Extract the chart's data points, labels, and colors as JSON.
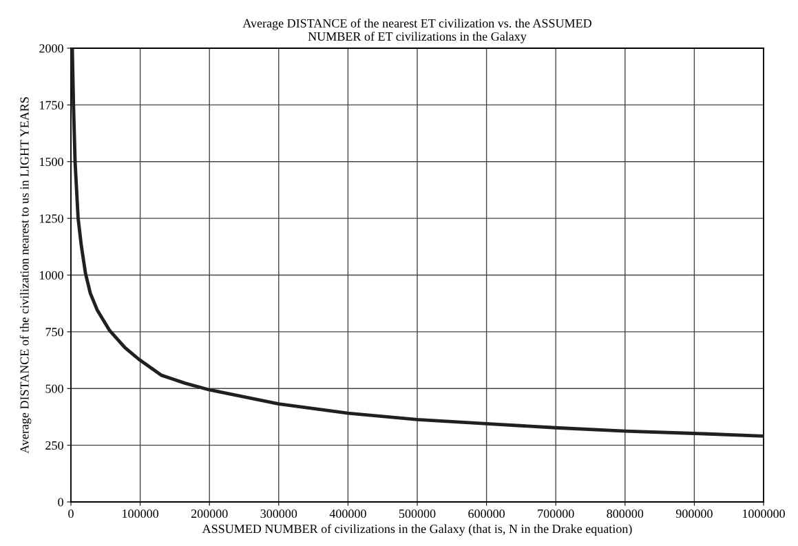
{
  "chart_data": {
    "type": "line",
    "title": "Average DISTANCE of the nearest ET civilization vs. the ASSUMED\nNUMBER of ET civilizations in the Galaxy",
    "xlabel": "ASSUMED NUMBER of civilizations in the Galaxy (that is, N in the Drake equation)",
    "ylabel": "Average DISTANCE of the civilization nearest to us in LIGHT YEARS",
    "x": [
      2000,
      3700,
      6000,
      10400,
      15000,
      21000,
      28000,
      37800,
      56000,
      78000,
      98000,
      131000,
      165000,
      200000,
      300000,
      400000,
      500000,
      600000,
      700000,
      800000,
      900000,
      1000000
    ],
    "series": [
      {
        "color": "#231f20",
        "values": [
          2000,
          1750,
          1500,
          1250,
          1130,
          1008,
          920,
          847,
          755,
          680,
          629,
          558,
          523,
          494,
          432,
          391,
          363,
          345,
          327,
          312,
          302,
          290
        ]
      }
    ],
    "xlim": [
      0,
      1000000
    ],
    "ylim": [
      0,
      2000
    ],
    "xticks": [
      0,
      100000,
      200000,
      300000,
      400000,
      500000,
      600000,
      700000,
      800000,
      900000,
      1000000
    ],
    "yticks": [
      0,
      250,
      500,
      750,
      1000,
      1250,
      1500,
      1750,
      2000
    ],
    "grid": true,
    "marker": "none",
    "line_style": "solid"
  }
}
